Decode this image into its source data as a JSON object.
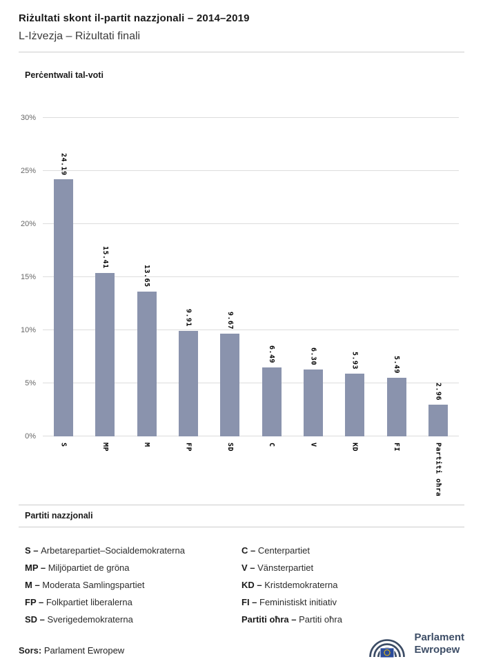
{
  "header": {
    "title": "Riżultati skont il-partit nazzjonali – 2014–2019",
    "subtitle": "L-Iżvezja – Riżultati finali"
  },
  "chart_data": {
    "type": "bar",
    "title": "Perċentwali tal-voti",
    "categories": [
      "S",
      "MP",
      "M",
      "FP",
      "SD",
      "C",
      "V",
      "KD",
      "FI",
      "Partiti oħra"
    ],
    "values": [
      24.19,
      15.41,
      13.65,
      9.91,
      9.67,
      6.49,
      6.3,
      5.93,
      5.49,
      2.96
    ],
    "value_labels": [
      "24.19",
      "15.41",
      "13.65",
      "9.91",
      "9.67",
      "6.49",
      "6.30",
      "5.93",
      "5.49",
      "2.96"
    ],
    "ylim": [
      0,
      30
    ],
    "yticks": [
      0,
      5,
      10,
      15,
      20,
      25,
      30
    ],
    "ytick_labels": [
      "0%",
      "5%",
      "10%",
      "15%",
      "20%",
      "25%",
      "30%"
    ],
    "grid": true,
    "bar_color": "#8a93ad"
  },
  "legend": {
    "heading": "Partiti nazzjonali",
    "separator": "–",
    "columns": [
      [
        {
          "abbr": "S",
          "name": "Arbetarepartiet–Socialdemokraterna"
        },
        {
          "abbr": "MP",
          "name": "Miljöpartiet de gröna"
        },
        {
          "abbr": "M",
          "name": "Moderata Samlingspartiet"
        },
        {
          "abbr": "FP",
          "name": "Folkpartiet liberalerna"
        },
        {
          "abbr": "SD",
          "name": "Sverigedemokraterna"
        }
      ],
      [
        {
          "abbr": "C",
          "name": "Centerpartiet"
        },
        {
          "abbr": "V",
          "name": "Vänsterpartiet"
        },
        {
          "abbr": "KD",
          "name": "Kristdemokraterna"
        },
        {
          "abbr": "FI",
          "name": "Feministiskt initiativ"
        },
        {
          "abbr": "Partiti oħra",
          "name": "Partiti oħra"
        }
      ]
    ]
  },
  "footer": {
    "source_label": "Sors:",
    "source_value": "Parlament Ewropew",
    "logo_line1": "Parlament",
    "logo_line2": "Ewropew"
  },
  "brand": {
    "navy": "#3d4d66",
    "eu_blue": "#2a4b9b",
    "star_yellow": "#ffcc00"
  }
}
